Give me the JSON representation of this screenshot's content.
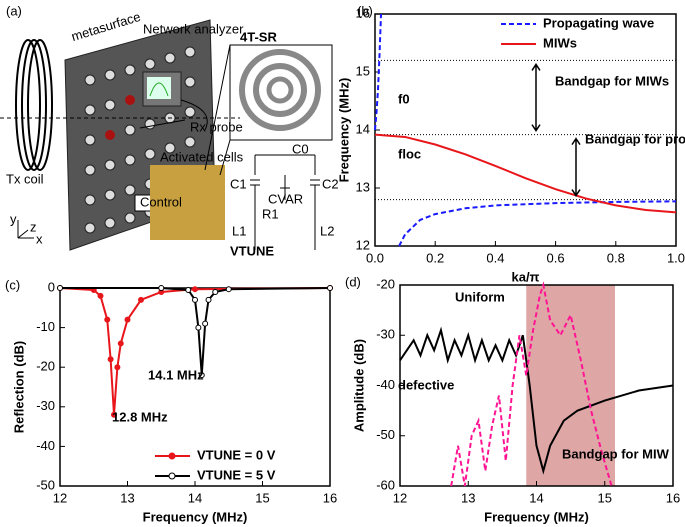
{
  "diagram": {
    "label": "(a)",
    "texts": [
      "metasurface",
      "Network analyzer",
      "4T-SR",
      "Rx probe",
      "Activated cells",
      "Tx coil",
      "Control",
      "C0",
      "C1",
      "CVAR",
      "C2",
      "R1",
      "L1",
      "L2",
      "VTUNE",
      "y",
      "x",
      "z"
    ]
  },
  "chart_data": [
    {
      "type": "line",
      "label": "(b)",
      "xlabel": "ka/π",
      "ylabel": "Frequency (MHz)",
      "xlim": [
        0,
        1
      ],
      "ylim": [
        12,
        16
      ],
      "xticks": [
        {
          "value": 0,
          "label": "0.0"
        },
        {
          "value": 0.2,
          "label": "0.2"
        },
        {
          "value": 0.4,
          "label": "0.4"
        },
        {
          "value": 0.6,
          "label": "0.6"
        },
        {
          "value": 0.8,
          "label": "0.8"
        },
        {
          "value": 1,
          "label": "1.0"
        }
      ],
      "yticks": [
        12,
        13,
        14,
        15,
        16
      ],
      "legend": "upper right",
      "hlines": [
        15.2,
        13.92,
        12.8
      ],
      "annotations": [
        "f0",
        "floc",
        "Bandgap for MIWs",
        "Bandgap for prop. wave"
      ],
      "series": [
        {
          "name": "Propagating wave",
          "color": "#1a1aff",
          "dash": true,
          "x": [
            0,
            0.005,
            0.01,
            0.015,
            0.02,
            0.03,
            0.08,
            0.1,
            0.15,
            0.2,
            0.3,
            0.4,
            0.6,
            0.8,
            1.0
          ],
          "values": [
            14,
            14.3,
            14.7,
            15.3,
            16,
            null,
            12,
            12.2,
            12.45,
            12.55,
            12.65,
            12.7,
            12.74,
            12.76,
            12.77
          ]
        },
        {
          "name": "MIWs",
          "color": "#e8161b",
          "dash": false,
          "x": [
            0,
            0.1,
            0.2,
            0.3,
            0.4,
            0.5,
            0.6,
            0.7,
            0.8,
            0.9,
            1.0
          ],
          "values": [
            13.92,
            13.88,
            13.75,
            13.58,
            13.38,
            13.17,
            12.98,
            12.82,
            12.7,
            12.62,
            12.58
          ]
        }
      ]
    },
    {
      "type": "line",
      "label": "(c)",
      "xlabel": "Frequency (MHz)",
      "ylabel": "Reflection (dB)",
      "xlim": [
        12,
        16
      ],
      "ylim": [
        -50,
        0
      ],
      "xticks": [
        12,
        13,
        14,
        15,
        16
      ],
      "yticks": [
        0,
        -10,
        -20,
        -30,
        -40,
        -50
      ],
      "legend": "lower left",
      "annotations": [
        "12.8 MHz",
        "14.1 MHz"
      ],
      "series": [
        {
          "name": "VTUNE = 0 V",
          "color": "#e8161b",
          "dash": false,
          "marker": "filled",
          "x": [
            12,
            12.5,
            12.6,
            12.7,
            12.75,
            12.8,
            12.85,
            12.9,
            13.0,
            13.2,
            13.5,
            14,
            16
          ],
          "values": [
            0,
            -0.5,
            -2,
            -8,
            -18,
            -32,
            -20,
            -14,
            -8,
            -3,
            -1,
            -0.3,
            0
          ]
        },
        {
          "name": "VTUNE = 5 V",
          "color": "#000000",
          "dash": false,
          "marker": "open",
          "x": [
            12,
            13.5,
            13.9,
            14.0,
            14.05,
            14.1,
            14.15,
            14.2,
            14.3,
            14.5,
            16
          ],
          "values": [
            0,
            0,
            -0.5,
            -3,
            -10,
            -22,
            -9,
            -3,
            -1,
            -0.3,
            0
          ]
        }
      ]
    },
    {
      "type": "line",
      "label": "(d)",
      "xlabel": "Frequency (MHz)",
      "ylabel": "Amplitude (dB)",
      "xlim": [
        12,
        16
      ],
      "ylim": [
        -60,
        -20
      ],
      "xticks": [
        12,
        13,
        14,
        15,
        16
      ],
      "yticks": [
        -20,
        -30,
        -40,
        -50,
        -60
      ],
      "band": [
        13.85,
        15.15
      ],
      "band_color": "#dfa6a6",
      "annotations": [
        "Bandgap for MIW"
      ],
      "series": [
        {
          "name": "Uniform",
          "color": "#000000",
          "dash": false,
          "x": [
            12,
            12.1,
            12.2,
            12.3,
            12.4,
            12.5,
            12.6,
            12.7,
            12.8,
            12.9,
            13.0,
            13.1,
            13.2,
            13.3,
            13.4,
            13.5,
            13.6,
            13.7,
            13.8,
            13.9,
            14.0,
            14.1,
            14.2,
            14.4,
            14.6,
            15,
            15.5,
            16
          ],
          "values": [
            -35,
            -33,
            -31,
            -34,
            -30,
            -33,
            -29,
            -35,
            -31,
            -34,
            -30,
            -35,
            -31,
            -35,
            -32,
            -35,
            -31,
            -34,
            -30,
            -40,
            -52,
            -57,
            -52,
            -47,
            -45,
            -43,
            -41,
            -40
          ]
        },
        {
          "name": "defective",
          "color": "#ff1493",
          "dash": true,
          "x": [
            12.75,
            12.85,
            12.95,
            13.05,
            13.15,
            13.25,
            13.35,
            13.45,
            13.55,
            13.65,
            13.75,
            13.85,
            13.95,
            14.05,
            14.1,
            14.2,
            14.35,
            14.5,
            14.65,
            14.8,
            14.95,
            15.1
          ],
          "values": [
            -60,
            -52,
            -60,
            -50,
            -47,
            -57,
            -48,
            -42,
            -55,
            -40,
            -30,
            -38,
            -29,
            -22,
            -20,
            -27,
            -30,
            -26,
            -35,
            -45,
            -53,
            -60
          ]
        }
      ]
    }
  ]
}
